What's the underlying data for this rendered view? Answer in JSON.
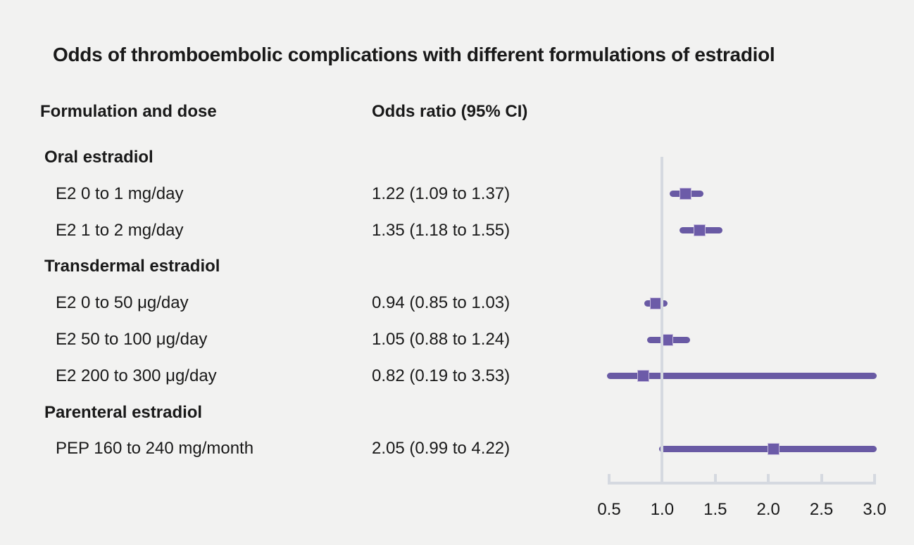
{
  "title": "Odds of thromboembolic complications with different formulations of estradiol",
  "column_headers": {
    "formulation": "Formulation and dose",
    "odds_ratio": "Odds ratio (95% CI)"
  },
  "chart_data": {
    "type": "forest",
    "title": "Odds of thromboembolic complications with different formulations of estradiol",
    "x_axis": {
      "range": [
        0.5,
        3.0
      ],
      "tick_values": [
        0.5,
        1.0,
        1.5,
        2.0,
        2.5,
        3.0
      ],
      "tick_labels": [
        "0.5",
        "1.0",
        "1.5",
        "2.0",
        "2.5",
        "3.0"
      ],
      "reference_line": 1.0,
      "grid": false
    },
    "rows": [
      {
        "kind": "group",
        "label": "Oral estradiol"
      },
      {
        "kind": "item",
        "label": "E2 0 to 1 mg/day",
        "value_text": "1.22 (1.09 to 1.37)",
        "or": 1.22,
        "ci_low": 1.09,
        "ci_high": 1.37
      },
      {
        "kind": "item",
        "label": "E2 1 to 2 mg/day",
        "value_text": "1.35 (1.18 to 1.55)",
        "or": 1.35,
        "ci_low": 1.18,
        "ci_high": 1.55
      },
      {
        "kind": "group",
        "label": "Transdermal estradiol"
      },
      {
        "kind": "item",
        "label": "E2 0 to 50 μg/day",
        "value_text": "0.94 (0.85 to 1.03)",
        "or": 0.94,
        "ci_low": 0.85,
        "ci_high": 1.03
      },
      {
        "kind": "item",
        "label": "E2 50 to 100 μg/day",
        "value_text": "1.05 (0.88 to 1.24)",
        "or": 1.05,
        "ci_low": 0.88,
        "ci_high": 1.24
      },
      {
        "kind": "item",
        "label": "E2 200 to 300 μg/day",
        "value_text": "0.82 (0.19 to 3.53)",
        "or": 0.82,
        "ci_low": 0.19,
        "ci_high": 3.53
      },
      {
        "kind": "group",
        "label": "Parenteral estradiol"
      },
      {
        "kind": "item",
        "label": "PEP 160 to 240 mg/month",
        "value_text": "2.05 (0.99 to 4.22)",
        "or": 2.05,
        "ci_low": 0.99,
        "ci_high": 4.22
      }
    ],
    "colors": {
      "marker": "#695aa4",
      "marker_square": "#6c5ba8",
      "marker_square_border": "#c6bbdc",
      "axis": "#d5d9e0",
      "background": "#f2f2f1",
      "text": "#191919"
    }
  }
}
